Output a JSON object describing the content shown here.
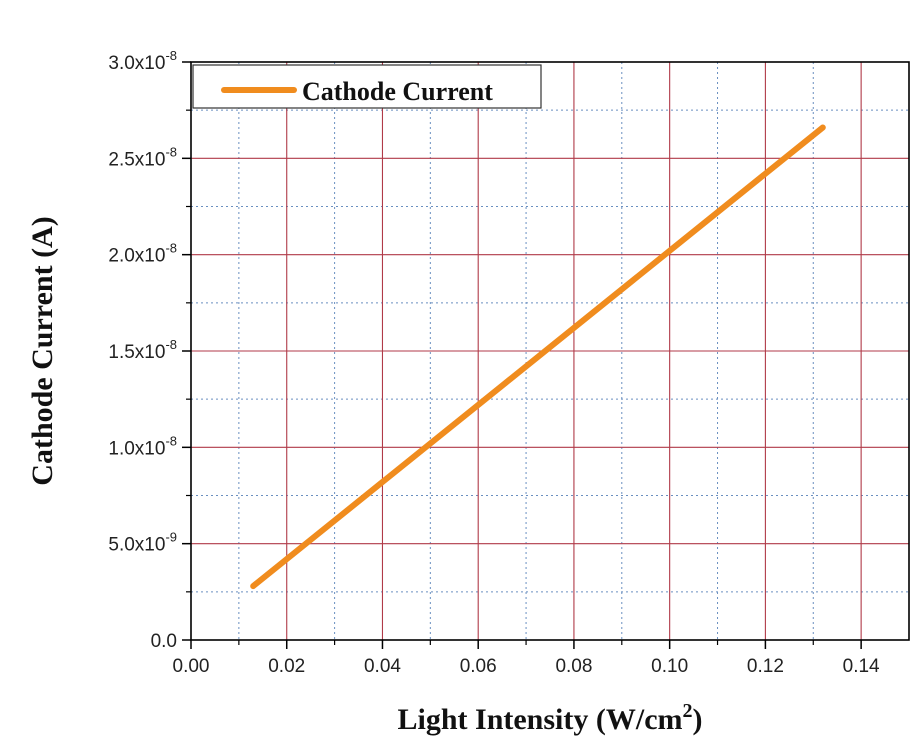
{
  "chart_data": {
    "type": "line",
    "xlabel": "Light Intensity (W/cm",
    "xlabel_superscript": "2",
    "xlabel_suffix": ")",
    "ylabel": "Cathode Current (A)",
    "xlim": [
      0,
      0.14
    ],
    "ylim": [
      0,
      3e-08
    ],
    "x_ticks": [
      0.0,
      0.02,
      0.04,
      0.06,
      0.08,
      0.1,
      0.12,
      0.14
    ],
    "x_tick_labels": [
      "0.00",
      "0.02",
      "0.04",
      "0.06",
      "0.08",
      "0.10",
      "0.12",
      "0.14"
    ],
    "y_ticks": [
      0,
      5e-09,
      1e-08,
      1.5e-08,
      2e-08,
      2.5e-08,
      3e-08
    ],
    "y_tick_labels": [
      {
        "base": "0.0",
        "exp": ""
      },
      {
        "base": "5.0x10",
        "exp": "-9"
      },
      {
        "base": "1.0x10",
        "exp": "-8"
      },
      {
        "base": "1.5x10",
        "exp": "-8"
      },
      {
        "base": "2.0x10",
        "exp": "-8"
      },
      {
        "base": "2.5x10",
        "exp": "-8"
      },
      {
        "base": "3.0x10",
        "exp": "-8"
      }
    ],
    "grid": true,
    "legend_position": "top-left",
    "series": [
      {
        "name": "Cathode Current",
        "color": "#F08C1E",
        "x": [
          0.013,
          0.132
        ],
        "y": [
          2.8e-09,
          2.66e-08
        ]
      }
    ]
  },
  "colors": {
    "major_grid": "#B03A48",
    "minor_grid": "#6A8FC0",
    "axis": "#000000"
  }
}
